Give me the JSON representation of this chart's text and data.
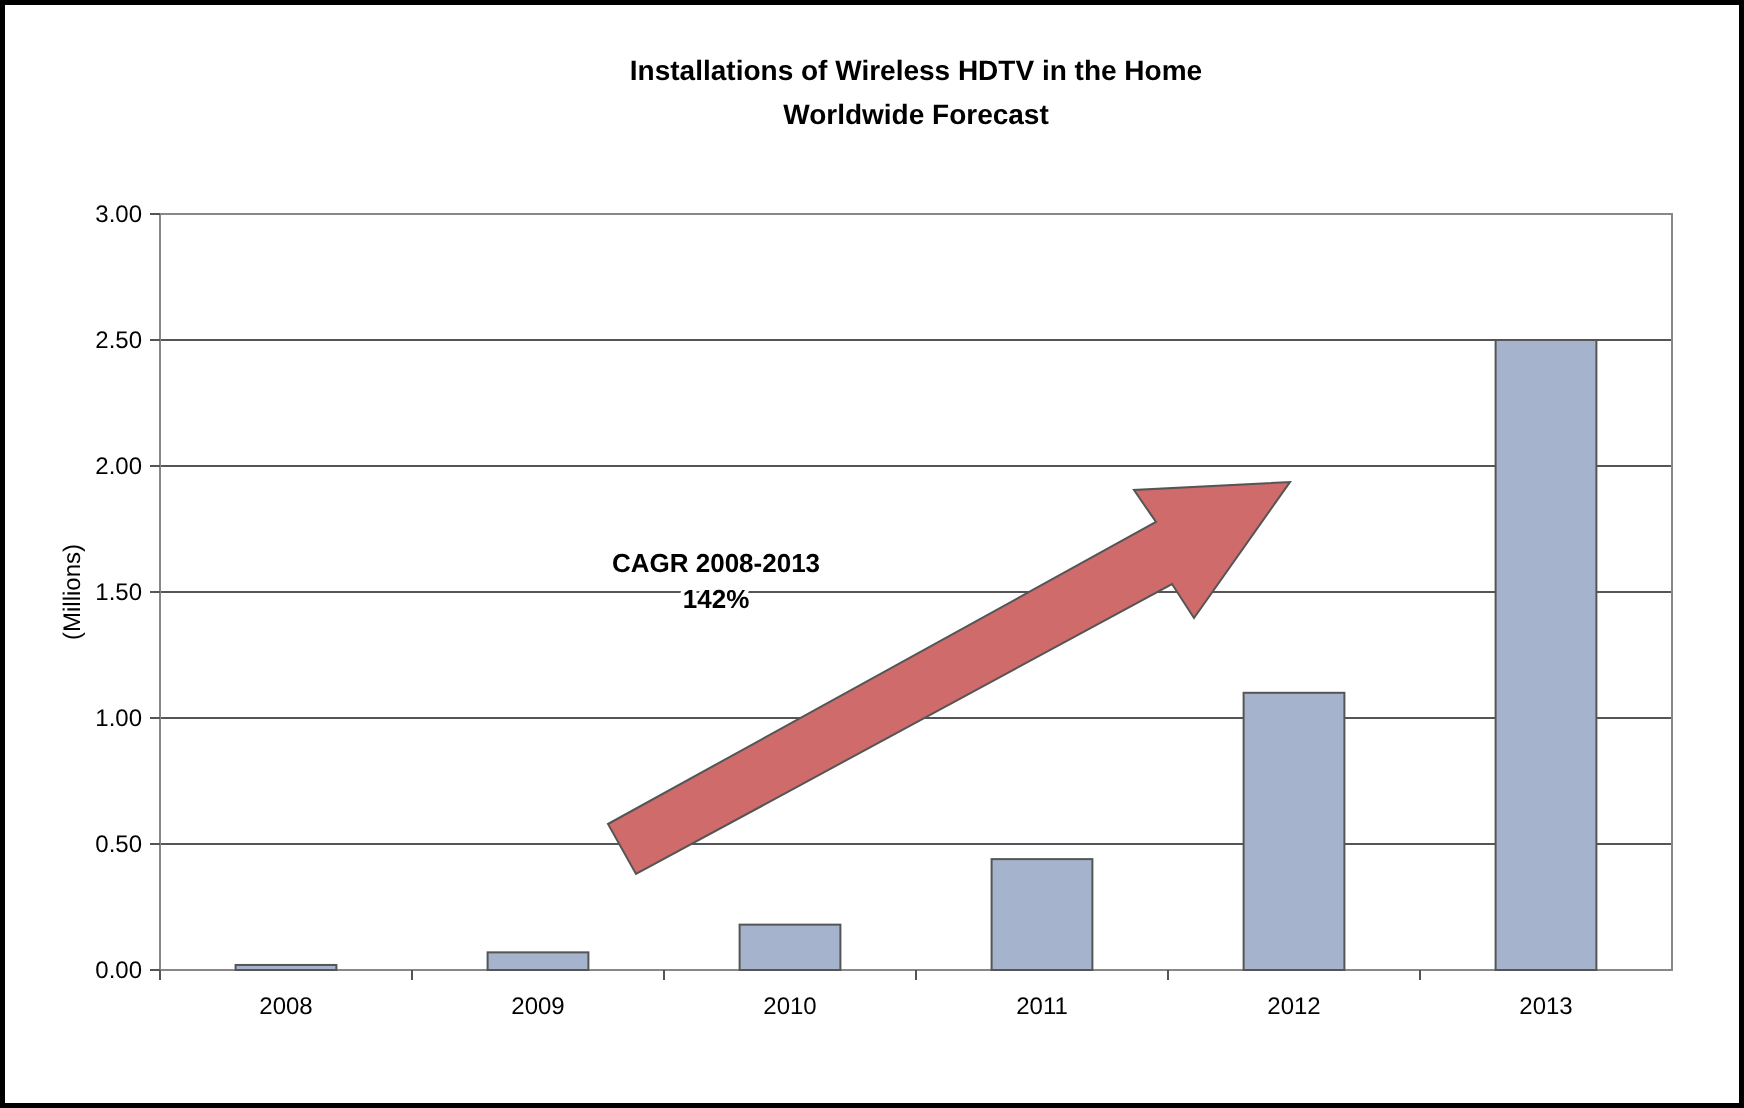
{
  "chart_data": {
    "type": "bar",
    "title": "Installations of Wireless HDTV in the Home\nWorldwide Forecast",
    "ylabel": "(Millions)",
    "categories": [
      "2008",
      "2009",
      "2010",
      "2011",
      "2012",
      "2013"
    ],
    "values": [
      0.02,
      0.07,
      0.18,
      0.44,
      1.1,
      2.5
    ],
    "color": "#a5b3cc",
    "ylim": [
      0,
      3
    ],
    "yticks": [
      {
        "value": 0,
        "label": "0.00"
      },
      {
        "value": 0.5,
        "label": "0.50"
      },
      {
        "value": 1,
        "label": "1.00"
      },
      {
        "value": 1.5,
        "label": "1.50"
      },
      {
        "value": 2,
        "label": "2.00"
      },
      {
        "value": 2.5,
        "label": "2.50"
      },
      {
        "value": 3,
        "label": "3.00"
      }
    ],
    "grid": "y",
    "annotations": [
      "CAGR 2008-2013\n142%"
    ]
  }
}
